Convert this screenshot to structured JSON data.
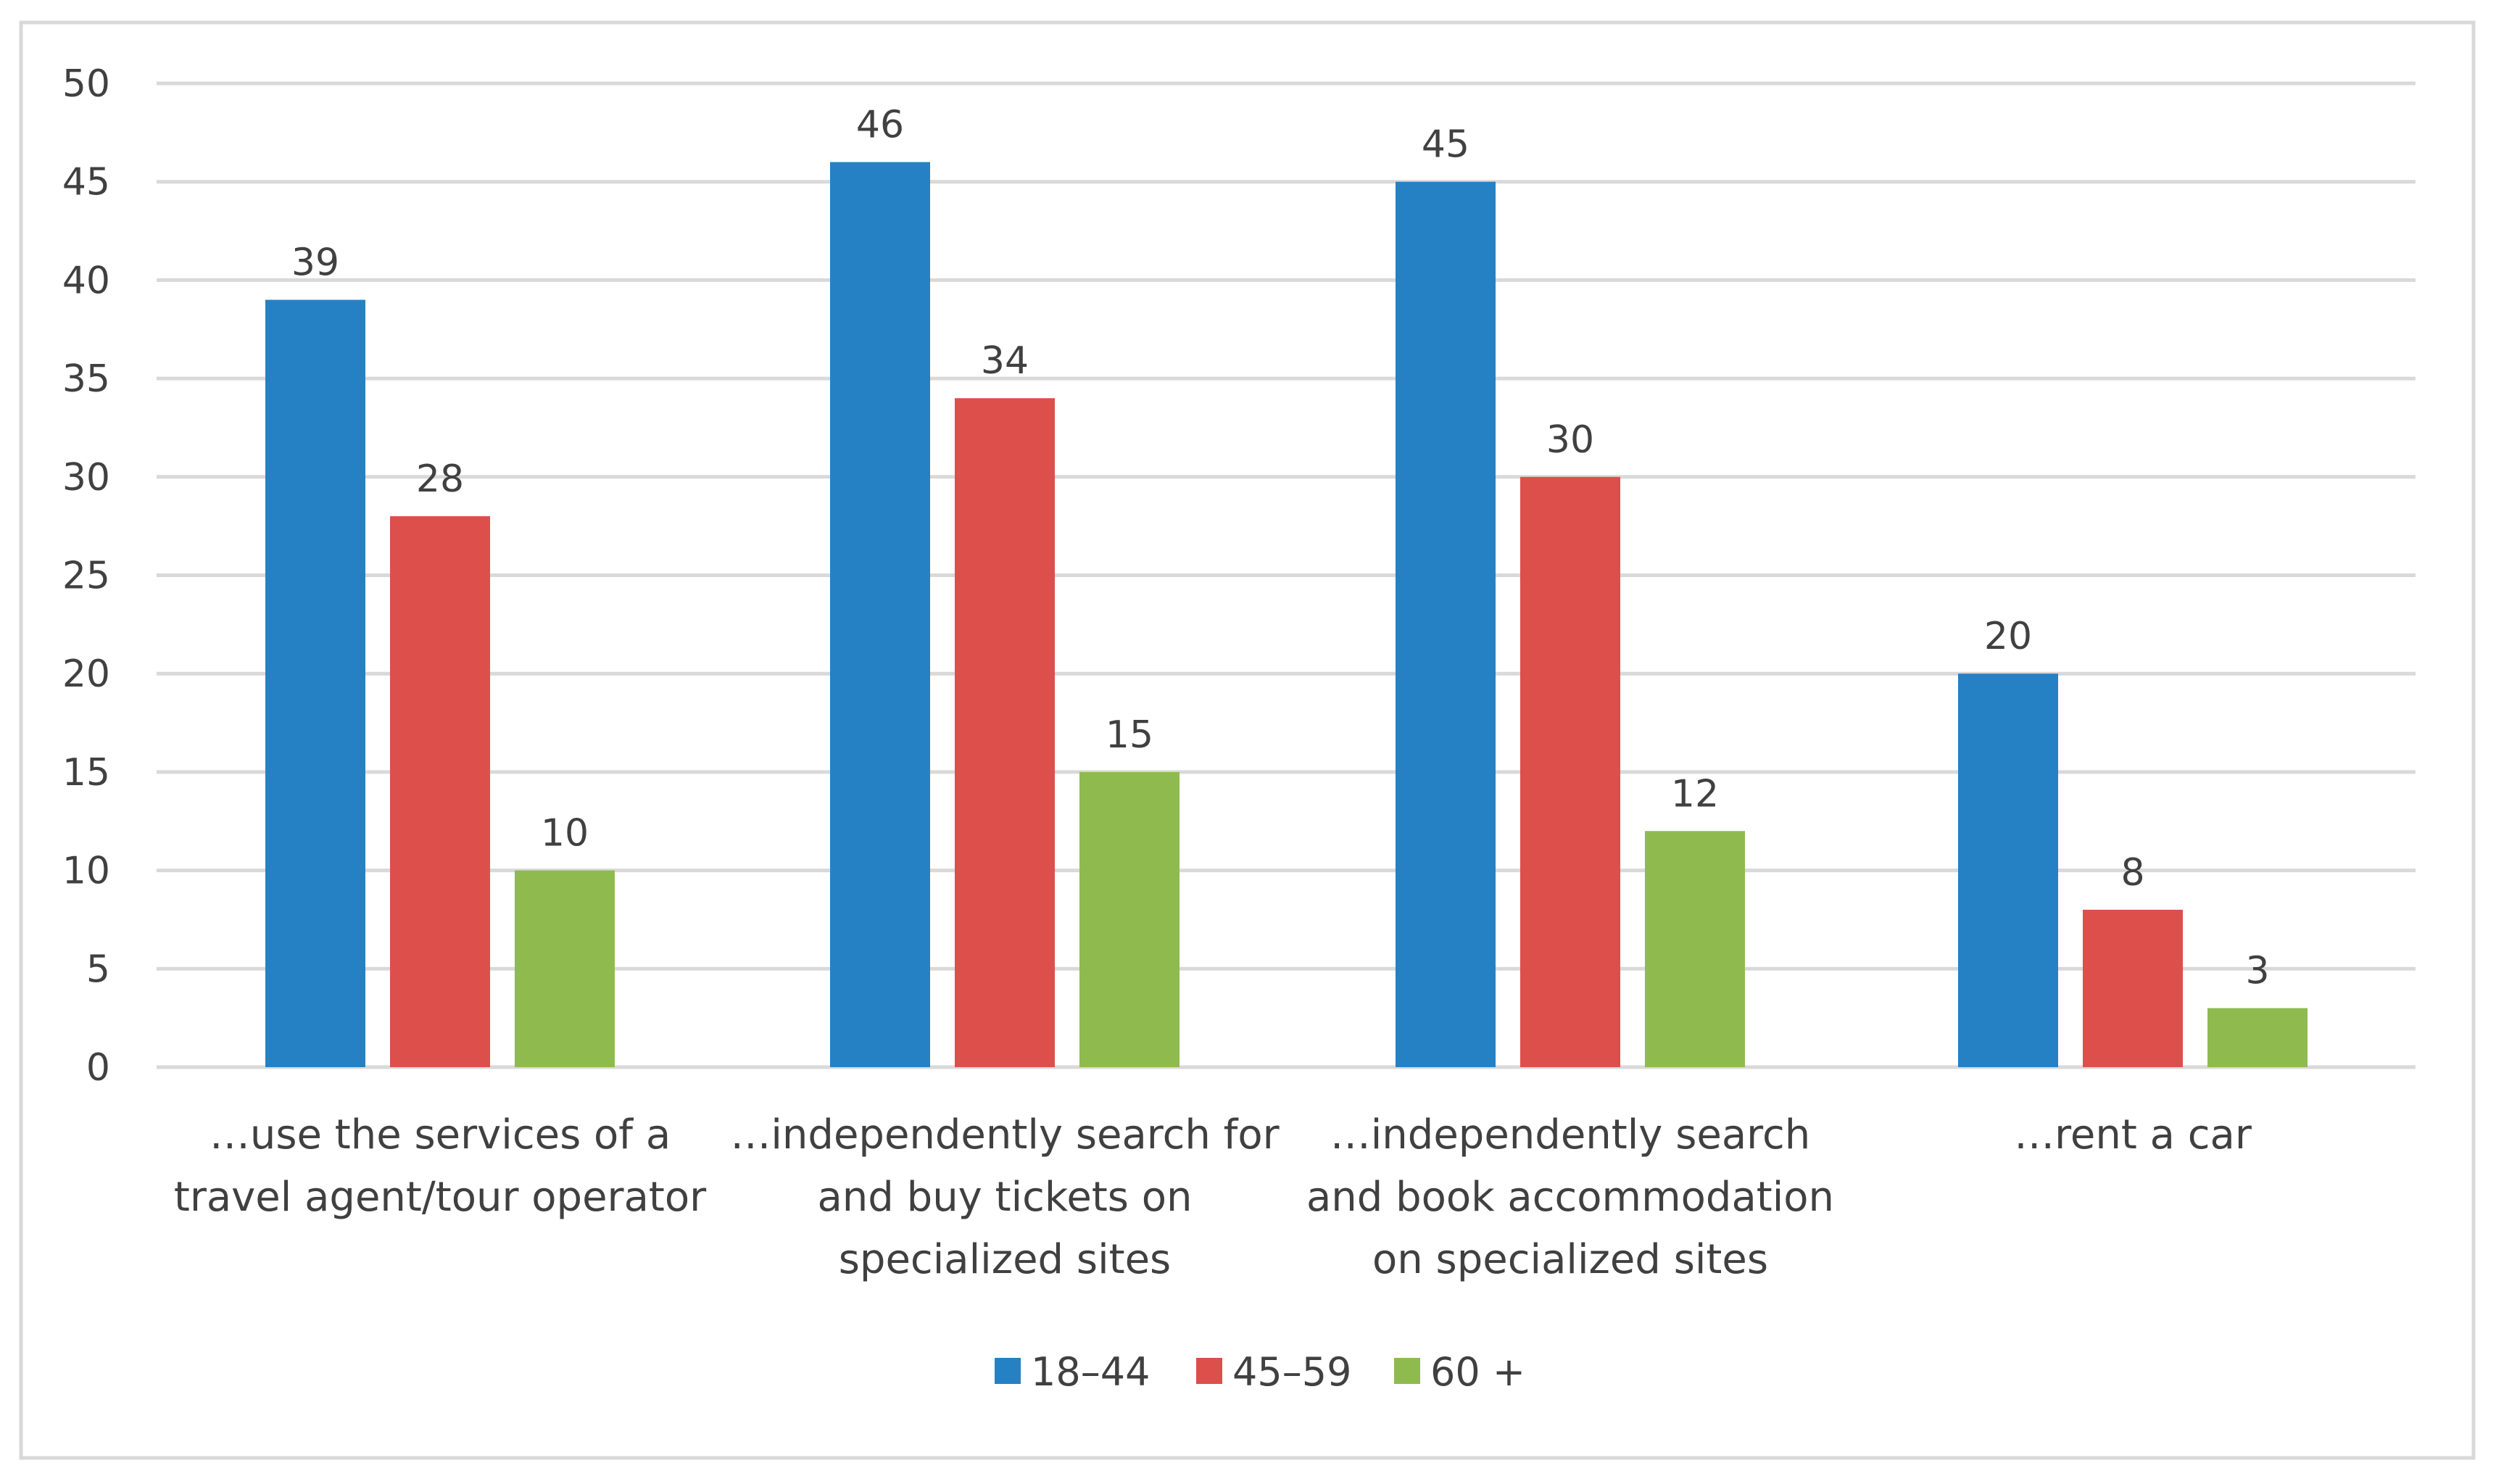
{
  "chart_data": {
    "type": "bar",
    "title": "",
    "xlabel": "",
    "ylabel": "",
    "ylim": [
      0,
      50
    ],
    "yticks": [
      0,
      5,
      10,
      15,
      20,
      25,
      30,
      35,
      40,
      45,
      50
    ],
    "grid": true,
    "legend_position": "bottom",
    "categories": [
      [
        "…use the services of a",
        "travel agent/tour operator"
      ],
      [
        "…independently search for",
        "and buy tickets on",
        "specialized sites"
      ],
      [
        "…independently search",
        "and book accommodation",
        "on specialized sites"
      ],
      [
        "…rent a car"
      ]
    ],
    "series": [
      {
        "name": "18–44",
        "color": "#2581c4",
        "values": [
          39,
          46,
          45,
          20
        ]
      },
      {
        "name": "45–59",
        "color": "#dc4f4b",
        "values": [
          28,
          34,
          30,
          8
        ]
      },
      {
        "name": "60 +",
        "color": "#8fbb4e",
        "values": [
          10,
          15,
          12,
          3
        ]
      }
    ]
  }
}
